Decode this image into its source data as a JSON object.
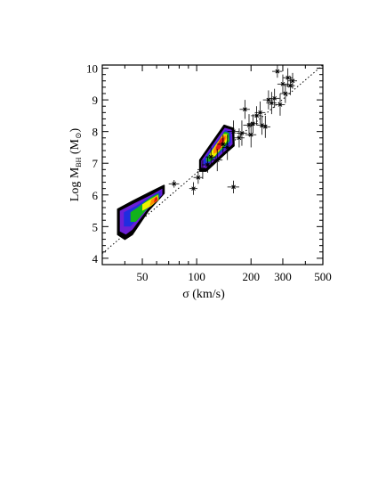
{
  "chart_data": {
    "type": "scatter",
    "title": "",
    "xlabel": "σ (km/s)",
    "ylabel": {
      "main": "Log M",
      "subscript": "BH",
      "unit_open": " (M",
      "unit_symbol": "⊙",
      "unit_close": ")"
    },
    "x_scale": "log",
    "xlim": [
      30,
      500
    ],
    "ylim": [
      3.8,
      10.1
    ],
    "x_ticks": [
      {
        "value": 50,
        "label": "50"
      },
      {
        "value": 100,
        "label": "100"
      },
      {
        "value": 200,
        "label": "200"
      },
      {
        "value": 300,
        "label": "300"
      },
      {
        "value": 500,
        "label": "500"
      }
    ],
    "y_ticks": [
      {
        "value": 4,
        "label": "4"
      },
      {
        "value": 5,
        "label": "5"
      },
      {
        "value": 6,
        "label": "6"
      },
      {
        "value": 7,
        "label": "7"
      },
      {
        "value": 8,
        "label": "8"
      },
      {
        "value": 9,
        "label": "9"
      },
      {
        "value": 10,
        "label": "10"
      }
    ],
    "reference_line": {
      "style": "dotted",
      "points": [
        [
          30,
          4.15
        ],
        [
          500,
          10.1
        ]
      ]
    },
    "density_levels": [
      {
        "color": "#000000"
      },
      {
        "color": "#6b1fd6"
      },
      {
        "color": "#1f2de0"
      },
      {
        "color": "#12b21c"
      },
      {
        "color": "#f0f000"
      },
      {
        "color": "#ff8c00"
      },
      {
        "color": "#e01818"
      }
    ],
    "density_clusters": [
      {
        "name": "",
        "levels": [
          [
            [
              36.5,
              4.75
            ],
            [
              40,
              4.6
            ],
            [
              44,
              4.75
            ],
            [
              54,
              5.5
            ],
            [
              66,
              6.05
            ],
            [
              66,
              6.3
            ],
            [
              56,
              6.1
            ],
            [
              44,
              5.8
            ],
            [
              36.5,
              5.55
            ]
          ],
          [
            [
              37.5,
              4.85
            ],
            [
              40.5,
              4.75
            ],
            [
              44,
              4.9
            ],
            [
              53.5,
              5.55
            ],
            [
              64.5,
              6.0
            ],
            [
              64.5,
              6.2
            ],
            [
              56,
              6.0
            ],
            [
              44.5,
              5.72
            ],
            [
              37.5,
              5.5
            ]
          ],
          [
            [
              39.5,
              5.0
            ],
            [
              43,
              5.0
            ],
            [
              54,
              5.6
            ],
            [
              63,
              5.95
            ],
            [
              63,
              6.12
            ],
            [
              56,
              5.95
            ],
            [
              46,
              5.65
            ],
            [
              39.5,
              5.45
            ]
          ],
          [
            [
              43,
              5.15
            ],
            [
              46,
              5.15
            ],
            [
              55,
              5.65
            ],
            [
              62,
              5.85
            ],
            [
              61.5,
              6.05
            ],
            [
              55,
              5.9
            ],
            [
              47,
              5.6
            ],
            [
              43,
              5.45
            ]
          ],
          [
            [
              50,
              5.5
            ],
            [
              56,
              5.65
            ],
            [
              61.5,
              5.85
            ],
            [
              61,
              6.0
            ],
            [
              55,
              5.85
            ],
            [
              50,
              5.7
            ]
          ],
          [
            [
              55,
              5.65
            ],
            [
              61,
              5.82
            ],
            [
              60.5,
              5.98
            ],
            [
              56,
              5.85
            ]
          ],
          [
            [
              58,
              5.75
            ],
            [
              61,
              5.85
            ],
            [
              60,
              5.95
            ],
            [
              58.5,
              5.88
            ]
          ]
        ]
      },
      {
        "name": "",
        "levels": [
          [
            [
              104,
              6.75
            ],
            [
              113,
              6.75
            ],
            [
              150,
              7.4
            ],
            [
              161,
              7.55
            ],
            [
              160,
              8.1
            ],
            [
              142,
              8.2
            ],
            [
              104,
              7.1
            ]
          ],
          [
            [
              106,
              6.85
            ],
            [
              113,
              6.85
            ],
            [
              148,
              7.45
            ],
            [
              158,
              7.6
            ],
            [
              157,
              8.05
            ],
            [
              143,
              8.12
            ],
            [
              106,
              7.08
            ]
          ],
          [
            [
              109,
              6.95
            ],
            [
              115,
              6.95
            ],
            [
              146,
              7.5
            ],
            [
              155,
              7.65
            ],
            [
              154,
              8.0
            ],
            [
              144,
              8.05
            ],
            [
              109,
              7.1
            ]
          ],
          [
            [
              113,
              7.05
            ],
            [
              119,
              7.05
            ],
            [
              144,
              7.55
            ],
            [
              152,
              7.7
            ],
            [
              151,
              7.95
            ],
            [
              143,
              8.0
            ],
            [
              113,
              7.15
            ]
          ],
          [
            [
              118,
              7.15
            ],
            [
              125,
              7.2
            ],
            [
              143,
              7.6
            ],
            [
              149,
              7.75
            ],
            [
              148,
              7.92
            ],
            [
              140,
              7.92
            ],
            [
              118,
              7.3
            ]
          ],
          [
            [
              124,
              7.3
            ],
            [
              131,
              7.35
            ],
            [
              142,
              7.65
            ],
            [
              146,
              7.8
            ],
            [
              145,
              7.88
            ],
            [
              137,
              7.85
            ],
            [
              124,
              7.42
            ]
          ],
          [
            [
              128,
              7.4
            ],
            [
              135,
              7.45
            ],
            [
              142,
              7.7
            ],
            [
              143,
              7.82
            ],
            [
              136,
              7.78
            ],
            [
              128,
              7.5
            ]
          ]
        ]
      }
    ],
    "series": [
      {
        "name": "",
        "points": [
          {
            "x": 75,
            "y": 6.35,
            "xerr": 5,
            "yerr": 0.12
          },
          {
            "x": 96,
            "y": 6.2,
            "xerr": 5,
            "yerr": 0.2
          },
          {
            "x": 102,
            "y": 6.55,
            "xerr": 6,
            "yerr": 0.2
          },
          {
            "x": 108,
            "y": 6.8,
            "xerr": 7,
            "yerr": 0.3
          },
          {
            "x": 115,
            "y": 6.95,
            "xerr": 8,
            "yerr": 0.25
          },
          {
            "x": 120,
            "y": 7.2,
            "xerr": 8,
            "yerr": 0.3
          },
          {
            "x": 130,
            "y": 7.1,
            "xerr": 9,
            "yerr": 0.35
          },
          {
            "x": 140,
            "y": 7.6,
            "xerr": 10,
            "yerr": 0.3
          },
          {
            "x": 148,
            "y": 7.5,
            "xerr": 10,
            "yerr": 0.4
          },
          {
            "x": 160,
            "y": 6.25,
            "xerr": 12,
            "yerr": 0.2
          },
          {
            "x": 160,
            "y": 8.0,
            "xerr": 12,
            "yerr": 0.35
          },
          {
            "x": 172,
            "y": 7.8,
            "xerr": 12,
            "yerr": 0.3
          },
          {
            "x": 178,
            "y": 7.95,
            "xerr": 12,
            "yerr": 0.4
          },
          {
            "x": 185,
            "y": 8.7,
            "xerr": 12,
            "yerr": 0.3
          },
          {
            "x": 195,
            "y": 8.2,
            "xerr": 14,
            "yerr": 0.35
          },
          {
            "x": 200,
            "y": 7.9,
            "xerr": 14,
            "yerr": 0.4
          },
          {
            "x": 205,
            "y": 8.25,
            "xerr": 14,
            "yerr": 0.3
          },
          {
            "x": 215,
            "y": 8.5,
            "xerr": 15,
            "yerr": 0.3
          },
          {
            "x": 225,
            "y": 8.6,
            "xerr": 15,
            "yerr": 0.35
          },
          {
            "x": 230,
            "y": 8.2,
            "xerr": 15,
            "yerr": 0.3
          },
          {
            "x": 240,
            "y": 8.15,
            "xerr": 16,
            "yerr": 0.35
          },
          {
            "x": 250,
            "y": 9.0,
            "xerr": 17,
            "yerr": 0.3
          },
          {
            "x": 260,
            "y": 8.9,
            "xerr": 17,
            "yerr": 0.35
          },
          {
            "x": 270,
            "y": 9.05,
            "xerr": 18,
            "yerr": 0.3
          },
          {
            "x": 280,
            "y": 9.9,
            "xerr": 18,
            "yerr": 0.2
          },
          {
            "x": 290,
            "y": 8.85,
            "xerr": 18,
            "yerr": 0.35
          },
          {
            "x": 300,
            "y": 9.5,
            "xerr": 20,
            "yerr": 0.3
          },
          {
            "x": 310,
            "y": 9.2,
            "xerr": 20,
            "yerr": 0.3
          },
          {
            "x": 320,
            "y": 9.7,
            "xerr": 20,
            "yerr": 0.3
          },
          {
            "x": 330,
            "y": 9.45,
            "xerr": 20,
            "yerr": 0.3
          },
          {
            "x": 340,
            "y": 9.6,
            "xerr": 20,
            "yerr": 0.25
          }
        ]
      }
    ],
    "grid": false,
    "legend": "none"
  }
}
